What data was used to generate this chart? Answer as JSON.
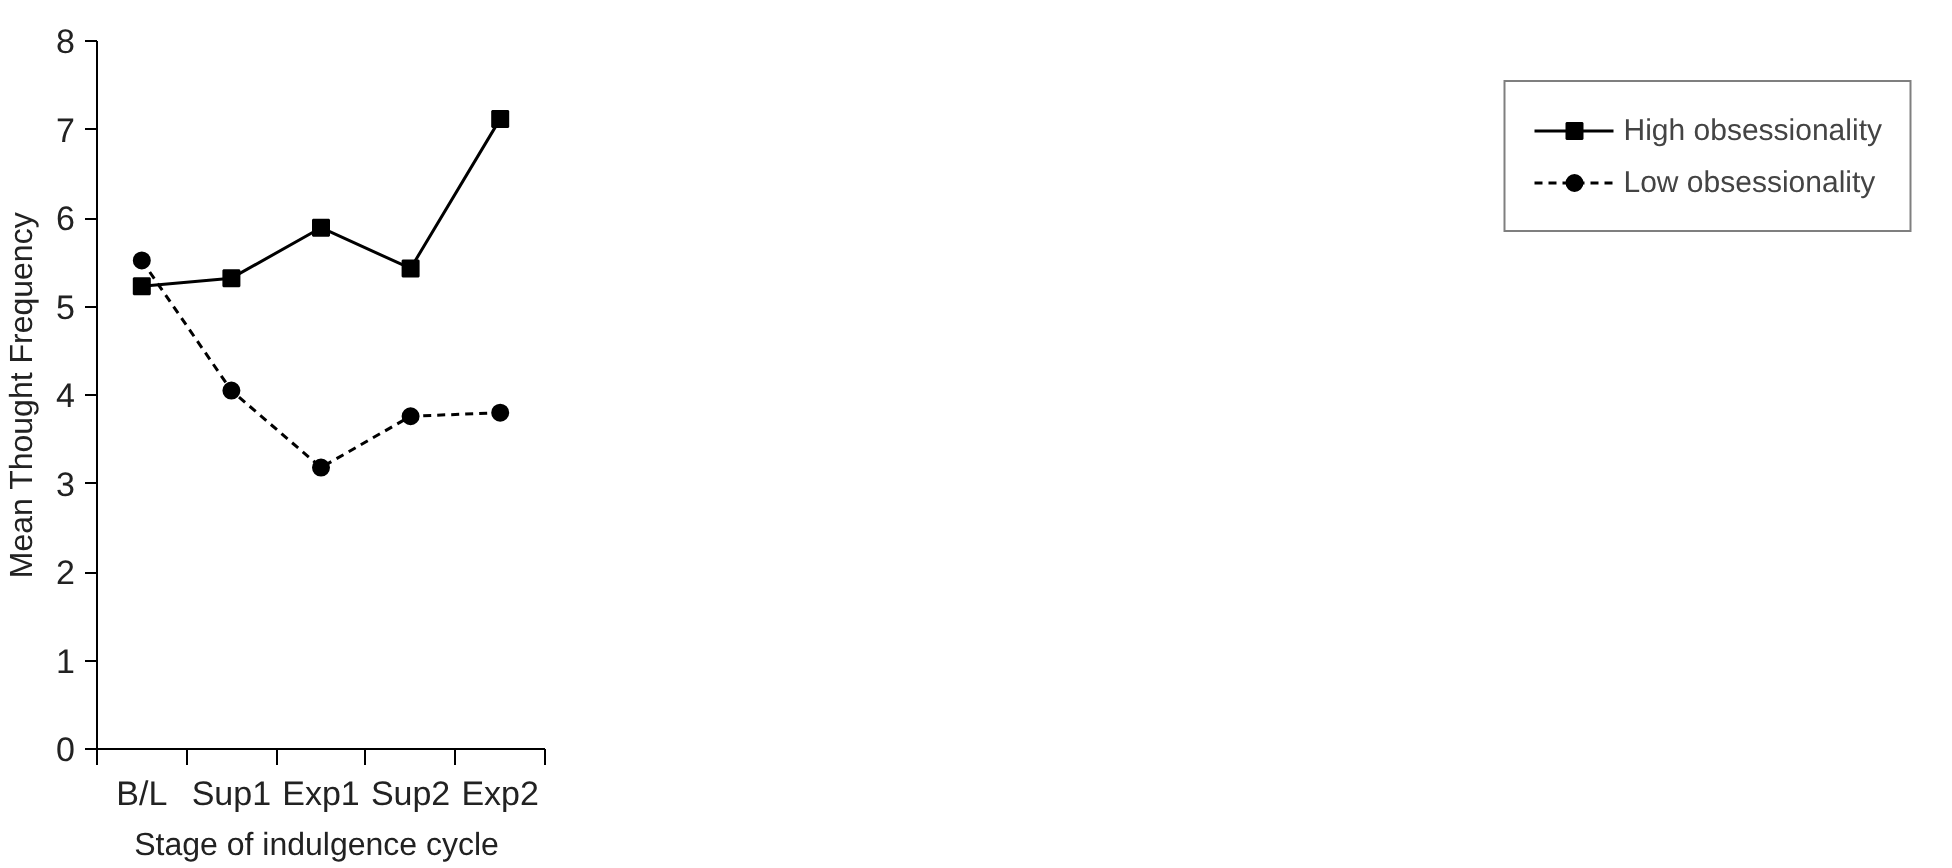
{
  "chart_data": {
    "type": "line",
    "xlabel": "Stage of  indulgence cycle",
    "ylabel": "Mean Thought Frequency",
    "categories": [
      "B/L",
      "Sup1",
      "Exp1",
      "Sup2",
      "Exp2"
    ],
    "series": [
      {
        "name": "High obsessionality",
        "color": "#000000",
        "marker": "square",
        "line_style": "solid",
        "values": [
          5.23,
          5.32,
          5.89,
          5.43,
          7.12
        ]
      },
      {
        "name": "Low obsessionality",
        "color": "#000000",
        "marker": "circle",
        "line_style": "dashed",
        "values": [
          5.52,
          4.05,
          3.18,
          3.76,
          3.8
        ]
      }
    ],
    "ylim": [
      0,
      8
    ],
    "yticks": [
      0,
      1,
      2,
      3,
      4,
      5,
      6,
      7,
      8
    ],
    "grid": false,
    "legend": "right"
  }
}
